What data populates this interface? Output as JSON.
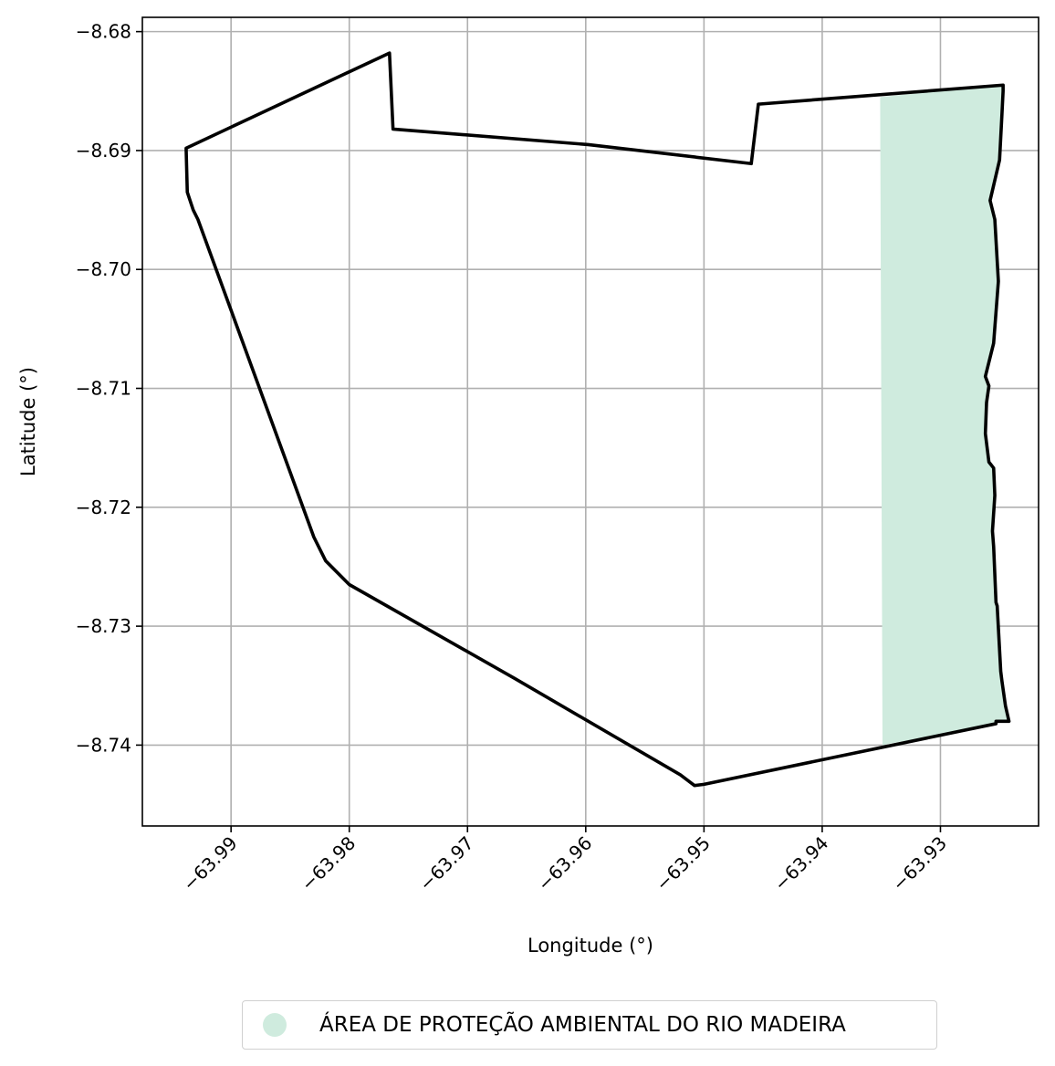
{
  "chart_data": {
    "type": "map",
    "xlabel": "Longitude (°)",
    "ylabel": "Latitude (°)",
    "xlim": [
      -63.9975,
      -63.9217
    ],
    "ylim": [
      -8.7468,
      -8.6788
    ],
    "x_ticks": [
      -63.99,
      -63.98,
      -63.97,
      -63.96,
      -63.95,
      -63.94,
      -63.93
    ],
    "x_tick_labels": [
      "−63.99",
      "−63.98",
      "−63.97",
      "−63.96",
      "−63.95",
      "−63.94",
      "−63.93"
    ],
    "y_ticks": [
      -8.68,
      -8.69,
      -8.7,
      -8.71,
      -8.72,
      -8.73,
      -8.74
    ],
    "y_tick_labels": [
      "−8.68",
      "−8.69",
      "−8.70",
      "−8.71",
      "−8.72",
      "−8.73",
      "−8.74"
    ],
    "grid": true,
    "legend_position": "bottom-center",
    "boundary_color": "#000000",
    "boundary": [
      [
        -63.9938,
        -8.6898
      ],
      [
        -63.9766,
        -8.6818
      ],
      [
        -63.9763,
        -8.6882
      ],
      [
        -63.9598,
        -8.6895
      ],
      [
        -63.946,
        -8.6911
      ],
      [
        -63.9454,
        -8.6861
      ],
      [
        -63.9247,
        -8.6845
      ],
      [
        -63.9247,
        -8.685
      ],
      [
        -63.9248,
        -8.687
      ],
      [
        -63.925,
        -8.6908
      ],
      [
        -63.9258,
        -8.6942
      ],
      [
        -63.9254,
        -8.6958
      ],
      [
        -63.9251,
        -8.701
      ],
      [
        -63.9255,
        -8.7062
      ],
      [
        -63.9262,
        -8.709
      ],
      [
        -63.9259,
        -8.7098
      ],
      [
        -63.9261,
        -8.7112
      ],
      [
        -63.9262,
        -8.7138
      ],
      [
        -63.9259,
        -8.7162
      ],
      [
        -63.9255,
        -8.7167
      ],
      [
        -63.9254,
        -8.719
      ],
      [
        -63.9256,
        -8.722
      ],
      [
        -63.9255,
        -8.7233
      ],
      [
        -63.9253,
        -8.728
      ],
      [
        -63.9252,
        -8.7283
      ],
      [
        -63.9249,
        -8.7338
      ],
      [
        -63.9248,
        -8.7346
      ],
      [
        -63.9245,
        -8.7367
      ],
      [
        -63.9242,
        -8.738
      ],
      [
        -63.9253,
        -8.738
      ],
      [
        -63.9253,
        -8.7382
      ],
      [
        -63.95,
        -8.7433
      ],
      [
        -63.9508,
        -8.7434
      ],
      [
        -63.952,
        -8.7425
      ],
      [
        -63.966,
        -8.7344
      ],
      [
        -63.98,
        -8.7265
      ],
      [
        -63.982,
        -8.7245
      ],
      [
        -63.983,
        -8.7225
      ],
      [
        -63.9928,
        -8.6958
      ],
      [
        -63.9932,
        -8.695
      ],
      [
        -63.9937,
        -8.6935
      ],
      [
        -63.9938,
        -8.6898
      ]
    ],
    "areas": [
      {
        "name": "ÁREA DE PROTEÇÃO AMBIENTAL DO RIO MADEIRA",
        "color": "#cfebde",
        "polygon": [
          [
            -63.9351,
            -8.6855
          ],
          [
            -63.9247,
            -8.6845
          ],
          [
            -63.9247,
            -8.685
          ],
          [
            -63.9248,
            -8.687
          ],
          [
            -63.925,
            -8.6908
          ],
          [
            -63.9258,
            -8.6942
          ],
          [
            -63.9254,
            -8.6958
          ],
          [
            -63.9251,
            -8.701
          ],
          [
            -63.9255,
            -8.7062
          ],
          [
            -63.9262,
            -8.709
          ],
          [
            -63.9259,
            -8.7098
          ],
          [
            -63.9261,
            -8.7112
          ],
          [
            -63.9262,
            -8.7138
          ],
          [
            -63.9259,
            -8.7162
          ],
          [
            -63.9255,
            -8.7167
          ],
          [
            -63.9254,
            -8.719
          ],
          [
            -63.9256,
            -8.722
          ],
          [
            -63.9255,
            -8.7233
          ],
          [
            -63.9253,
            -8.728
          ],
          [
            -63.9252,
            -8.7283
          ],
          [
            -63.9249,
            -8.7338
          ],
          [
            -63.9248,
            -8.7346
          ],
          [
            -63.9245,
            -8.7367
          ],
          [
            -63.9242,
            -8.738
          ],
          [
            -63.9253,
            -8.738
          ],
          [
            -63.9253,
            -8.7382
          ],
          [
            -63.9349,
            -8.74
          ]
        ]
      }
    ]
  }
}
